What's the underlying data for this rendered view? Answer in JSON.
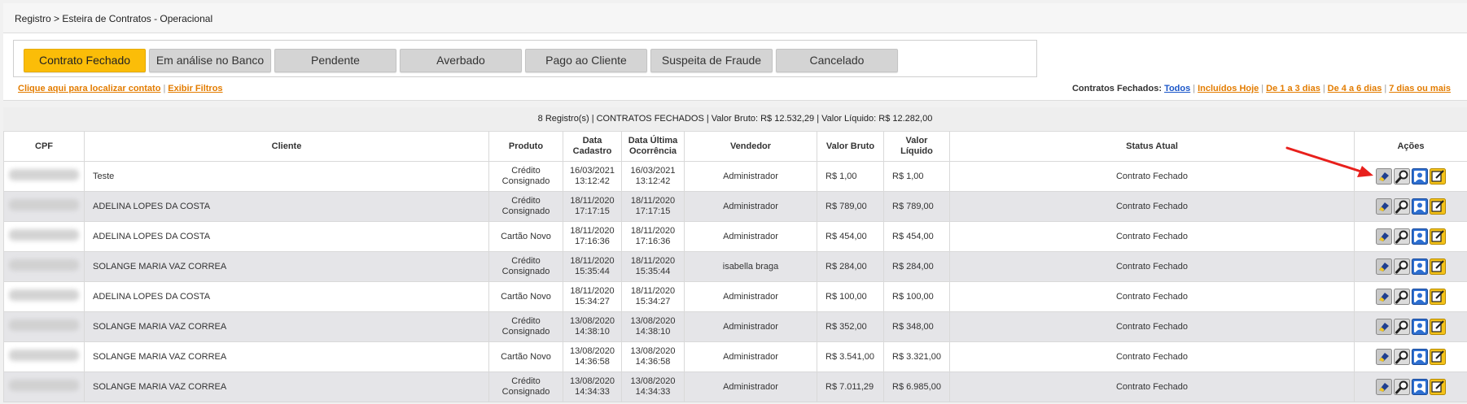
{
  "breadcrumb": "Registro > Esteira de Contratos - Operacional",
  "tabs": [
    {
      "label": "Contrato Fechado",
      "active": true
    },
    {
      "label": "Em análise no Banco",
      "active": false
    },
    {
      "label": "Pendente",
      "active": false
    },
    {
      "label": "Averbado",
      "active": false
    },
    {
      "label": "Pago ao Cliente",
      "active": false
    },
    {
      "label": "Suspeita de Fraude",
      "active": false
    },
    {
      "label": "Cancelado",
      "active": false
    }
  ],
  "links_left": {
    "locate": "Clique aqui para localizar contato",
    "sep": "|",
    "filters": "Exibir Filtros"
  },
  "links_right": {
    "label": "Contratos Fechados:",
    "all": "Todos",
    "today": "Incluídos Hoje",
    "d1_3": "De 1 a 3 dias",
    "d4_6": "De 4 a 6 dias",
    "d7": "7 dias ou mais",
    "sep": "|"
  },
  "summary": "8 Registro(s) | CONTRATOS FECHADOS | Valor Bruto: R$ 12.532,29 | Valor Líquido: R$ 12.282,00",
  "columns": {
    "cpf": "CPF",
    "cliente": "Cliente",
    "produto": "Produto",
    "data_cadastro_1": "Data",
    "data_cadastro_2": "Cadastro",
    "data_ultima_1": "Data Última",
    "data_ultima_2": "Ocorrência",
    "vendedor": "Vendedor",
    "valor_bruto": "Valor Bruto",
    "valor_liquido_1": "Valor",
    "valor_liquido_2": "Líquido",
    "status": "Status Atual",
    "acoes": "Ações"
  },
  "rows": [
    {
      "cliente": "Teste",
      "produto_1": "Crédito",
      "produto_2": "Consignado",
      "cad_data": "16/03/2021",
      "cad_hora": "13:12:42",
      "ult_data": "16/03/2021",
      "ult_hora": "13:12:42",
      "vendedor": "Administrador",
      "bruto": "R$ 1,00",
      "liquido": "R$ 1,00",
      "status": "Contrato Fechado"
    },
    {
      "cliente": "ADELINA LOPES DA COSTA",
      "produto_1": "Crédito",
      "produto_2": "Consignado",
      "cad_data": "18/11/2020",
      "cad_hora": "17:17:15",
      "ult_data": "18/11/2020",
      "ult_hora": "17:17:15",
      "vendedor": "Administrador",
      "bruto": "R$ 789,00",
      "liquido": "R$ 789,00",
      "status": "Contrato Fechado"
    },
    {
      "cliente": "ADELINA LOPES DA COSTA",
      "produto_1": "Cartão Novo",
      "produto_2": "",
      "cad_data": "18/11/2020",
      "cad_hora": "17:16:36",
      "ult_data": "18/11/2020",
      "ult_hora": "17:16:36",
      "vendedor": "Administrador",
      "bruto": "R$ 454,00",
      "liquido": "R$ 454,00",
      "status": "Contrato Fechado"
    },
    {
      "cliente": "SOLANGE MARIA VAZ CORREA",
      "produto_1": "Crédito",
      "produto_2": "Consignado",
      "cad_data": "18/11/2020",
      "cad_hora": "15:35:44",
      "ult_data": "18/11/2020",
      "ult_hora": "15:35:44",
      "vendedor": "isabella braga",
      "bruto": "R$ 284,00",
      "liquido": "R$ 284,00",
      "status": "Contrato Fechado"
    },
    {
      "cliente": "ADELINA LOPES DA COSTA",
      "produto_1": "Cartão Novo",
      "produto_2": "",
      "cad_data": "18/11/2020",
      "cad_hora": "15:34:27",
      "ult_data": "18/11/2020",
      "ult_hora": "15:34:27",
      "vendedor": "Administrador",
      "bruto": "R$ 100,00",
      "liquido": "R$ 100,00",
      "status": "Contrato Fechado"
    },
    {
      "cliente": "SOLANGE MARIA VAZ CORREA",
      "produto_1": "Crédito",
      "produto_2": "Consignado",
      "cad_data": "13/08/2020",
      "cad_hora": "14:38:10",
      "ult_data": "13/08/2020",
      "ult_hora": "14:38:10",
      "vendedor": "Administrador",
      "bruto": "R$ 352,00",
      "liquido": "R$ 348,00",
      "status": "Contrato Fechado"
    },
    {
      "cliente": "SOLANGE MARIA VAZ CORREA",
      "produto_1": "Cartão Novo",
      "produto_2": "",
      "cad_data": "13/08/2020",
      "cad_hora": "14:36:58",
      "ult_data": "13/08/2020",
      "ult_hora": "14:36:58",
      "vendedor": "Administrador",
      "bruto": "R$ 3.541,00",
      "liquido": "R$ 3.321,00",
      "status": "Contrato Fechado"
    },
    {
      "cliente": "SOLANGE MARIA VAZ CORREA",
      "produto_1": "Crédito",
      "produto_2": "Consignado",
      "cad_data": "13/08/2020",
      "cad_hora": "14:34:33",
      "ult_data": "13/08/2020",
      "ult_hora": "14:34:33",
      "vendedor": "Administrador",
      "bruto": "R$ 7.011,29",
      "liquido": "R$ 6.985,00",
      "status": "Contrato Fechado"
    }
  ],
  "action_icons": [
    "eraser-icon",
    "search-user-icon",
    "user-profile-icon",
    "edit-icon"
  ],
  "colors": {
    "active_tab": "#fbbd08",
    "link_orange": "#e37c00",
    "link_blue": "#1a56c9",
    "arrow": "#e8201c"
  }
}
